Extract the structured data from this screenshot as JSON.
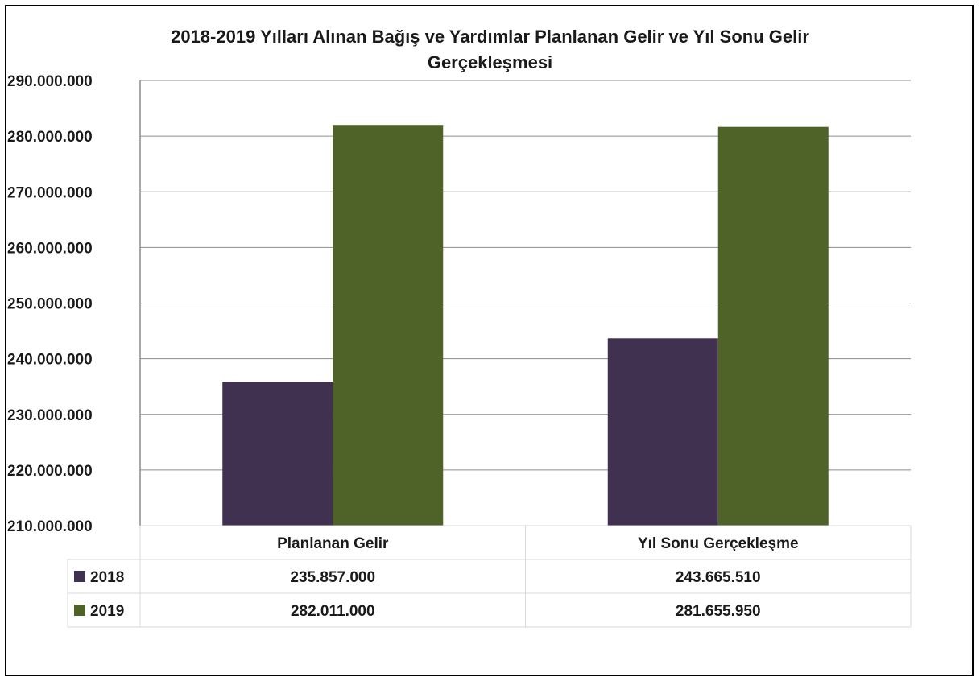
{
  "chart_data": {
    "type": "bar",
    "title": "2018-2019 Yılları Alınan Bağış ve Yardımlar Planlanan Gelir ve Yıl Sonu Gelir\nGerçekleşmesi",
    "categories": [
      "Planlanan Gelir",
      "Yıl Sonu Gerçekleşme"
    ],
    "series": [
      {
        "name": "2018",
        "values": [
          235857000,
          243665510
        ],
        "labels": [
          "235.857.000",
          "243.665.510"
        ],
        "color": "#413151"
      },
      {
        "name": "2019",
        "values": [
          282011000,
          281655950
        ],
        "labels": [
          "282.011.000",
          "281.655.950"
        ],
        "color": "#4f6228"
      }
    ],
    "ylim": [
      210000000,
      290000000
    ],
    "yticks": [
      "210.000.000",
      "220.000.000",
      "230.000.000",
      "240.000.000",
      "250.000.000",
      "260.000.000",
      "270.000.000",
      "280.000.000",
      "290.000.000"
    ],
    "grid": true,
    "legend": "data-table"
  }
}
